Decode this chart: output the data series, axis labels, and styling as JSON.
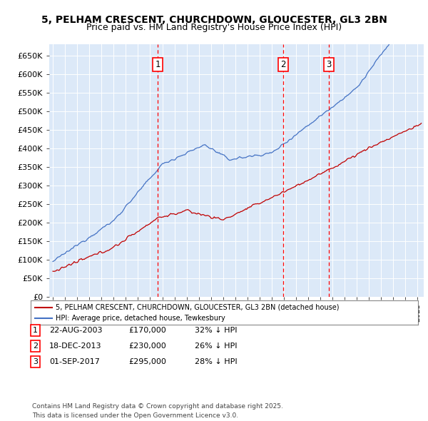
{
  "title_line1": "5, PELHAM CRESCENT, CHURCHDOWN, GLOUCESTER, GL3 2BN",
  "title_line2": "Price paid vs. HM Land Registry's House Price Index (HPI)",
  "ylim": [
    0,
    680000
  ],
  "yticks": [
    0,
    50000,
    100000,
    150000,
    200000,
    250000,
    300000,
    350000,
    400000,
    450000,
    500000,
    550000,
    600000,
    650000
  ],
  "ytick_labels": [
    "£0",
    "£50K",
    "£100K",
    "£150K",
    "£200K",
    "£250K",
    "£300K",
    "£350K",
    "£400K",
    "£450K",
    "£500K",
    "£550K",
    "£600K",
    "£650K"
  ],
  "xlim_start": 1994.7,
  "xlim_end": 2025.5,
  "plot_bg_color": "#dce9f8",
  "red_line_color": "#c00000",
  "blue_line_color": "#4472c4",
  "vline_color": "#ff0000",
  "sale_dates_year": [
    2003.64,
    2013.96,
    2017.67
  ],
  "sale_labels": [
    "1",
    "2",
    "3"
  ],
  "legend_red_label": "5, PELHAM CRESCENT, CHURCHDOWN, GLOUCESTER, GL3 2BN (detached house)",
  "legend_blue_label": "HPI: Average price, detached house, Tewkesbury",
  "table_rows": [
    [
      "1",
      "22-AUG-2003",
      "£170,000",
      "32% ↓ HPI"
    ],
    [
      "2",
      "18-DEC-2013",
      "£230,000",
      "26% ↓ HPI"
    ],
    [
      "3",
      "01-SEP-2017",
      "£295,000",
      "28% ↓ HPI"
    ]
  ],
  "footer_text": "Contains HM Land Registry data © Crown copyright and database right 2025.\nThis data is licensed under the Open Government Licence v3.0.",
  "grid_color": "#ffffff",
  "title_fontsize": 10,
  "subtitle_fontsize": 9
}
